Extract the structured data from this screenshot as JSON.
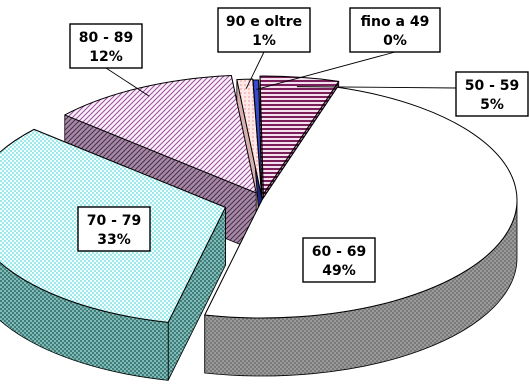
{
  "chart_data": {
    "type": "pie",
    "style": "3d-exploded",
    "title": "",
    "legend": "none",
    "slices": [
      {
        "label": "60 - 69",
        "value": 49,
        "value_text": "49%",
        "color": "#ffffff",
        "pattern": "plain"
      },
      {
        "label": "70 - 79",
        "value": 33,
        "value_text": "33%",
        "color": "#e8ffff",
        "pattern": "checker-cyan"
      },
      {
        "label": "80 - 89",
        "value": 12,
        "value_text": "12%",
        "color": "#f4e6f4",
        "pattern": "diagonal-purple"
      },
      {
        "label": "90 e oltre",
        "value": 1,
        "value_text": "1%",
        "color": "#ffe4e4",
        "pattern": "pink"
      },
      {
        "label": "fino a 49",
        "value": 0,
        "value_text": "0%",
        "color": "#3040c0",
        "pattern": "solid-blue"
      },
      {
        "label": "50 - 59",
        "value": 5,
        "value_text": "5%",
        "color": "#7a1f5a",
        "pattern": "horizontal-stripes"
      }
    ]
  }
}
